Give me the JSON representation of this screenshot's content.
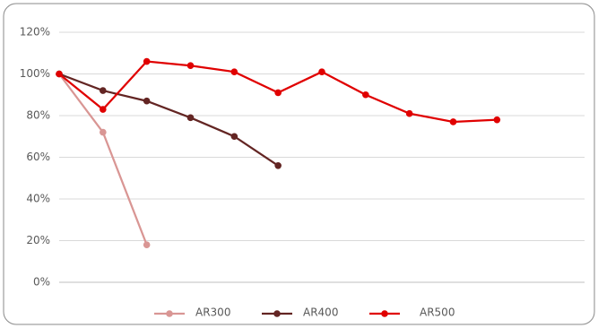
{
  "chart_data": {
    "type": "line",
    "categories": [
      null,
      null,
      null,
      null,
      null,
      null,
      null,
      null,
      null,
      null,
      null,
      null,
      null
    ],
    "series": [
      {
        "name": "AR300",
        "color": "#d99694",
        "values": [
          100,
          72,
          18,
          null,
          null,
          null,
          null,
          null,
          null,
          null,
          null,
          null,
          null
        ]
      },
      {
        "name": "AR400",
        "color": "#632523",
        "values": [
          100,
          92,
          87,
          79,
          70,
          56,
          null,
          null,
          null,
          null,
          null,
          null,
          null
        ]
      },
      {
        "name": "AR500",
        "color": "#e00000",
        "values": [
          100,
          83,
          106,
          104,
          101,
          91,
          101,
          90,
          81,
          77,
          78,
          null,
          null
        ]
      }
    ],
    "ylim": [
      0,
      120
    ],
    "yticks": [
      {
        "value": 0,
        "label": "0%"
      },
      {
        "value": 20,
        "label": "20%"
      },
      {
        "value": 40,
        "label": "40%"
      },
      {
        "value": 60,
        "label": "60%"
      },
      {
        "value": 80,
        "label": "80%"
      },
      {
        "value": 100,
        "label": "100%"
      },
      {
        "value": 120,
        "label": "120%"
      }
    ],
    "grid": true,
    "legend": "bottom"
  }
}
